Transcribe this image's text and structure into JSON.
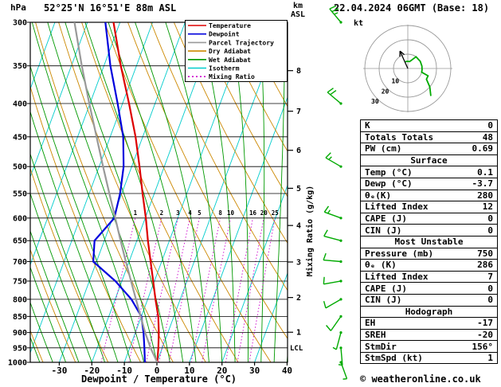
{
  "header": {
    "pressure_unit": "hPa",
    "station": "52°25'N 16°51'E 88m ASL",
    "datetime": "22.04.2024 06GMT (Base: 18)",
    "km_label": "km",
    "asl_label": "ASL"
  },
  "legend": {
    "items": [
      {
        "label": "Temperature",
        "color": "#dd0000",
        "dash": ""
      },
      {
        "label": "Dewpoint",
        "color": "#0000dd",
        "dash": ""
      },
      {
        "label": "Parcel Trajectory",
        "color": "#999999",
        "dash": ""
      },
      {
        "label": "Dry Adiabat",
        "color": "#cc8800",
        "dash": ""
      },
      {
        "label": "Wet Adiabat",
        "color": "#009900",
        "dash": ""
      },
      {
        "label": "Isotherm",
        "color": "#00cccc",
        "dash": ""
      },
      {
        "label": "Mixing Ratio",
        "color": "#cc00cc",
        "dash": "2,3"
      }
    ]
  },
  "axes": {
    "x_label": "Dewpoint / Temperature (°C)",
    "x_ticks": [
      -30,
      -20,
      -10,
      0,
      10,
      20,
      30,
      40
    ],
    "pressure_ticks": [
      300,
      350,
      400,
      450,
      500,
      550,
      600,
      650,
      700,
      750,
      800,
      850,
      900,
      950,
      1000
    ],
    "km_ticks": [
      1,
      2,
      3,
      4,
      5,
      6,
      7,
      8
    ],
    "mixing_ratio_axis_label": "Mixing Ratio (g/kg)",
    "mixing_ratio_values": [
      1,
      2,
      3,
      4,
      5,
      8,
      10,
      16,
      20,
      25
    ],
    "lcl_label": "LCL"
  },
  "chart_data": {
    "type": "skew-t-log-p-sounding",
    "pressure_range_hpa": [
      1000,
      300
    ],
    "temp_axis_c": [
      -30,
      40
    ],
    "series": [
      {
        "name": "temperature_c",
        "color": "#dd0000",
        "points": [
          [
            1000,
            0.1
          ],
          [
            950,
            -1.2
          ],
          [
            900,
            -2.8
          ],
          [
            850,
            -4.8
          ],
          [
            800,
            -7.6
          ],
          [
            750,
            -10.4
          ],
          [
            700,
            -13.4
          ],
          [
            650,
            -16.6
          ],
          [
            600,
            -19.8
          ],
          [
            550,
            -23.6
          ],
          [
            500,
            -27.6
          ],
          [
            450,
            -32.2
          ],
          [
            400,
            -38.0
          ],
          [
            350,
            -44.8
          ],
          [
            300,
            -52.0
          ]
        ]
      },
      {
        "name": "dewpoint_c",
        "color": "#0000dd",
        "points": [
          [
            1000,
            -3.7
          ],
          [
            950,
            -5.5
          ],
          [
            900,
            -7.5
          ],
          [
            850,
            -10.0
          ],
          [
            800,
            -15.0
          ],
          [
            750,
            -22.0
          ],
          [
            700,
            -31.0
          ],
          [
            650,
            -33.0
          ],
          [
            600,
            -29.5
          ],
          [
            550,
            -30.5
          ],
          [
            500,
            -32.5
          ],
          [
            450,
            -36.0
          ],
          [
            400,
            -41.5
          ],
          [
            350,
            -48.0
          ],
          [
            300,
            -54.5
          ]
        ]
      },
      {
        "name": "parcel_trajectory_c",
        "color": "#999999",
        "points": [
          [
            1000,
            0.1
          ],
          [
            950,
            -3.6
          ],
          [
            900,
            -7.0
          ],
          [
            850,
            -10.2
          ],
          [
            800,
            -13.6
          ],
          [
            750,
            -17.2
          ],
          [
            700,
            -21.0
          ],
          [
            650,
            -25.0
          ],
          [
            600,
            -29.2
          ],
          [
            550,
            -33.8
          ],
          [
            500,
            -38.8
          ],
          [
            450,
            -44.2
          ],
          [
            400,
            -50.2
          ],
          [
            350,
            -56.8
          ],
          [
            300,
            -64.0
          ]
        ]
      }
    ],
    "wind_barbs_kt": [
      {
        "p": 1000,
        "dir": 160,
        "spd": 5
      },
      {
        "p": 950,
        "dir": 175,
        "spd": 5
      },
      {
        "p": 900,
        "dir": 195,
        "spd": 5
      },
      {
        "p": 850,
        "dir": 215,
        "spd": 10
      },
      {
        "p": 800,
        "dir": 240,
        "spd": 10
      },
      {
        "p": 750,
        "dir": 260,
        "spd": 10
      },
      {
        "p": 700,
        "dir": 275,
        "spd": 10
      },
      {
        "p": 650,
        "dir": 285,
        "spd": 10
      },
      {
        "p": 600,
        "dir": 290,
        "spd": 15
      },
      {
        "p": 500,
        "dir": 300,
        "spd": 15
      },
      {
        "p": 400,
        "dir": 310,
        "spd": 20
      },
      {
        "p": 300,
        "dir": 320,
        "spd": 25
      }
    ],
    "hodograph": {
      "unit_label": "kt",
      "rings_kt": [
        10,
        20,
        30
      ],
      "storm_dir_deg": 156,
      "storm_speed_kt": 1
    }
  },
  "stats": {
    "indices": [
      {
        "label": "K",
        "value": "0"
      },
      {
        "label": "Totals Totals",
        "value": "48"
      },
      {
        "label": "PW (cm)",
        "value": "0.69"
      }
    ],
    "surface": {
      "title": "Surface",
      "rows": [
        {
          "label": "Temp (°C)",
          "value": "0.1"
        },
        {
          "label": "Dewp (°C)",
          "value": "-3.7"
        },
        {
          "label": "θₑ(K)",
          "value": "280"
        },
        {
          "label": "Lifted Index",
          "value": "12"
        },
        {
          "label": "CAPE (J)",
          "value": "0"
        },
        {
          "label": "CIN (J)",
          "value": "0"
        }
      ]
    },
    "most_unstable": {
      "title": "Most Unstable",
      "rows": [
        {
          "label": "Pressure (mb)",
          "value": "750"
        },
        {
          "label": "θₑ (K)",
          "value": "286"
        },
        {
          "label": "Lifted Index",
          "value": "7"
        },
        {
          "label": "CAPE (J)",
          "value": "0"
        },
        {
          "label": "CIN (J)",
          "value": "0"
        }
      ]
    },
    "hodograph": {
      "title": "Hodograph",
      "rows": [
        {
          "label": "EH",
          "value": "-17"
        },
        {
          "label": "SREH",
          "value": "-20"
        },
        {
          "label": "StmDir",
          "value": "156°"
        },
        {
          "label": "StmSpd (kt)",
          "value": "1"
        }
      ]
    }
  },
  "footer": {
    "copyright": "© weatheronline.co.uk"
  }
}
